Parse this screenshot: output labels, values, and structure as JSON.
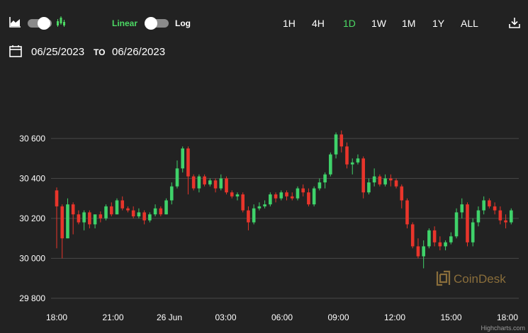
{
  "toolbar": {
    "chart_type_toggle": {
      "left_icon": "area-chart-icon",
      "right_icon": "candlestick-chart-icon"
    },
    "scale": {
      "linear_label": "Linear",
      "log_label": "Log",
      "active": "Linear"
    },
    "ranges": [
      "1H",
      "4H",
      "1D",
      "1W",
      "1M",
      "1Y",
      "ALL"
    ],
    "active_range": "1D",
    "download_icon": "download-icon"
  },
  "date_range": {
    "calendar_icon": "calendar-icon",
    "from": "06/25/2023",
    "to_label": "TO",
    "to": "06/26/2023"
  },
  "watermark": "CoinDesk",
  "credits": "Highcharts.com",
  "colors": {
    "background": "#222222",
    "up": "#3fd26a",
    "down": "#e8352b",
    "accent": "#4cd964",
    "grid": "#4a4a4a",
    "watermark": "#8a6e3b"
  },
  "chart_data": {
    "type": "candlestick",
    "title": "",
    "xlabel": "",
    "ylabel": "",
    "ylim": [
      29750,
      30780
    ],
    "y_ticks": [
      29800,
      30000,
      30200,
      30400,
      30600
    ],
    "y_tick_labels": [
      "29 800",
      "30 000",
      "30 200",
      "30 400",
      "30 600"
    ],
    "x_range": [
      0,
      1452
    ],
    "x_ticks": [
      {
        "label": "18:00",
        "t": 0
      },
      {
        "label": "21:00",
        "t": 180
      },
      {
        "label": "26 Jun",
        "t": 360
      },
      {
        "label": "03:00",
        "t": 540
      },
      {
        "label": "06:00",
        "t": 720
      },
      {
        "label": "09:00",
        "t": 900
      },
      {
        "label": "12:00",
        "t": 1080
      },
      {
        "label": "15:00",
        "t": 1260
      },
      {
        "label": "18:00",
        "t": 1440
      }
    ],
    "candle_interval_minutes": 10,
    "start_time": "06/25/2023 18:00",
    "candles": [
      [
        30340,
        30355,
        30050,
        30260
      ],
      [
        30260,
        30270,
        30000,
        30100
      ],
      [
        30100,
        30300,
        30100,
        30270
      ],
      [
        30270,
        30280,
        30120,
        30220
      ],
      [
        30220,
        30240,
        30170,
        30180
      ],
      [
        30180,
        30240,
        30140,
        30230
      ],
      [
        30230,
        30240,
        30150,
        30170
      ],
      [
        30170,
        30210,
        30150,
        30220
      ],
      [
        30220,
        30235,
        30180,
        30200
      ],
      [
        30200,
        30270,
        30190,
        30260
      ],
      [
        30260,
        30280,
        30210,
        30220
      ],
      [
        30220,
        30300,
        30220,
        30290
      ],
      [
        30290,
        30310,
        30240,
        30250
      ],
      [
        30250,
        30260,
        30230,
        30240
      ],
      [
        30240,
        30260,
        30200,
        30210
      ],
      [
        30210,
        30250,
        30200,
        30230
      ],
      [
        30230,
        30240,
        30170,
        30190
      ],
      [
        30190,
        30230,
        30180,
        30220
      ],
      [
        30220,
        30270,
        30210,
        30250
      ],
      [
        30250,
        30260,
        30210,
        30220
      ],
      [
        30220,
        30300,
        30220,
        30290
      ],
      [
        30290,
        30380,
        30270,
        30360
      ],
      [
        30360,
        30490,
        30350,
        30450
      ],
      [
        30450,
        30560,
        30430,
        30550
      ],
      [
        30550,
        30560,
        30320,
        30410
      ],
      [
        30410,
        30420,
        30340,
        30350
      ],
      [
        30350,
        30420,
        30330,
        30410
      ],
      [
        30410,
        30420,
        30360,
        30370
      ],
      [
        30370,
        30400,
        30360,
        30390
      ],
      [
        30390,
        30400,
        30330,
        30350
      ],
      [
        30350,
        30420,
        30340,
        30400
      ],
      [
        30400,
        30410,
        30320,
        30330
      ],
      [
        30330,
        30340,
        30300,
        30310
      ],
      [
        30310,
        30330,
        30290,
        30320
      ],
      [
        30320,
        30330,
        30230,
        30240
      ],
      [
        30240,
        30260,
        30140,
        30180
      ],
      [
        30180,
        30270,
        30170,
        30250
      ],
      [
        30250,
        30280,
        30240,
        30260
      ],
      [
        30260,
        30290,
        30250,
        30270
      ],
      [
        30270,
        30330,
        30260,
        30320
      ],
      [
        30320,
        30330,
        30280,
        30300
      ],
      [
        30300,
        30340,
        30290,
        30330
      ],
      [
        30330,
        30340,
        30290,
        30310
      ],
      [
        30310,
        30330,
        30290,
        30300
      ],
      [
        30300,
        30360,
        30290,
        30350
      ],
      [
        30350,
        30370,
        30310,
        30330
      ],
      [
        30330,
        30350,
        30260,
        30270
      ],
      [
        30270,
        30360,
        30260,
        30350
      ],
      [
        30350,
        30400,
        30340,
        30380
      ],
      [
        30380,
        30430,
        30350,
        30420
      ],
      [
        30420,
        30530,
        30410,
        30520
      ],
      [
        30520,
        30630,
        30500,
        30620
      ],
      [
        30620,
        30640,
        30530,
        30560
      ],
      [
        30560,
        30580,
        30450,
        30470
      ],
      [
        30470,
        30500,
        30420,
        30480
      ],
      [
        30480,
        30520,
        30470,
        30500
      ],
      [
        30500,
        30510,
        30300,
        30330
      ],
      [
        30330,
        30400,
        30320,
        30380
      ],
      [
        30380,
        30450,
        30360,
        30410
      ],
      [
        30410,
        30420,
        30360,
        30370
      ],
      [
        30370,
        30420,
        30360,
        30400
      ],
      [
        30400,
        30420,
        30360,
        30390
      ],
      [
        30390,
        30400,
        30350,
        30360
      ],
      [
        30360,
        30370,
        30250,
        30290
      ],
      [
        30290,
        30300,
        30150,
        30170
      ],
      [
        30170,
        30180,
        30050,
        30060
      ],
      [
        30060,
        30100,
        30000,
        30010
      ],
      [
        30010,
        30090,
        29950,
        30060
      ],
      [
        30060,
        30150,
        30050,
        30140
      ],
      [
        30140,
        30160,
        30060,
        30080
      ],
      [
        30080,
        30110,
        30040,
        30060
      ],
      [
        30060,
        30090,
        30040,
        30080
      ],
      [
        30080,
        30130,
        30070,
        30110
      ],
      [
        30110,
        30250,
        30100,
        30230
      ],
      [
        30230,
        30300,
        30200,
        30270
      ],
      [
        30270,
        30280,
        30060,
        30080
      ],
      [
        30080,
        30200,
        30060,
        30180
      ],
      [
        30180,
        30260,
        30160,
        30240
      ],
      [
        30240,
        30310,
        30220,
        30290
      ],
      [
        30290,
        30300,
        30250,
        30260
      ],
      [
        30260,
        30280,
        30220,
        30240
      ],
      [
        30240,
        30260,
        30170,
        30190
      ],
      [
        30190,
        30220,
        30150,
        30180
      ],
      [
        30180,
        30250,
        30170,
        30240
      ]
    ]
  }
}
